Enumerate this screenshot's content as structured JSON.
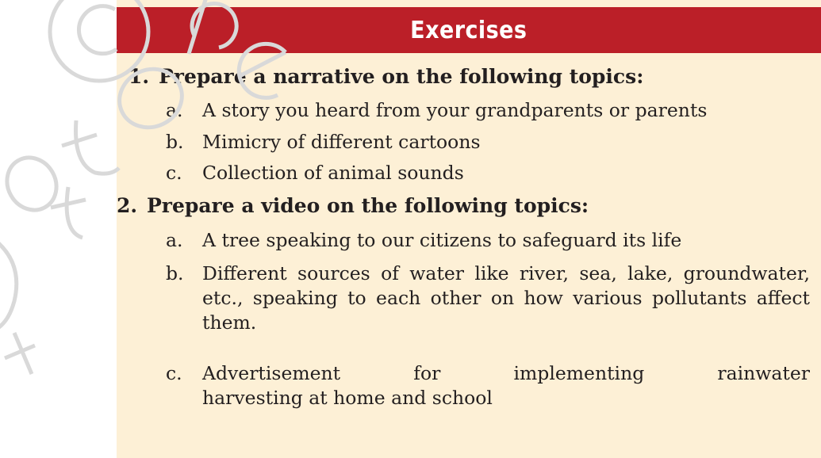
{
  "title": "Exercises",
  "questions": [
    {
      "number": "1.",
      "text": "Prepare a narrative on the following topics:",
      "items": [
        {
          "letter": "a.",
          "text": "A story you heard from your grandparents or parents"
        },
        {
          "letter": "b.",
          "text": "Mimicry of different cartoons"
        },
        {
          "letter": "c.",
          "text": "Collection of animal sounds"
        }
      ]
    },
    {
      "number": "2.",
      "text": "Prepare a video on the following topics:",
      "items": [
        {
          "letter": "a.",
          "text": "A tree speaking to our citizens to safeguard its life"
        },
        {
          "letter": "b.",
          "text": "Different sources of water like river, sea, lake, groundwater, etc., speaking to each other on how various pollutants affect them."
        },
        {
          "letter": "c.",
          "text_line1": "Advertisement for implementing rainwater",
          "text_line2": "harvesting at home and school"
        }
      ]
    }
  ],
  "colors": {
    "banner": "#bb1f28",
    "panel": "#fdf0d6",
    "text": "#231f20"
  }
}
